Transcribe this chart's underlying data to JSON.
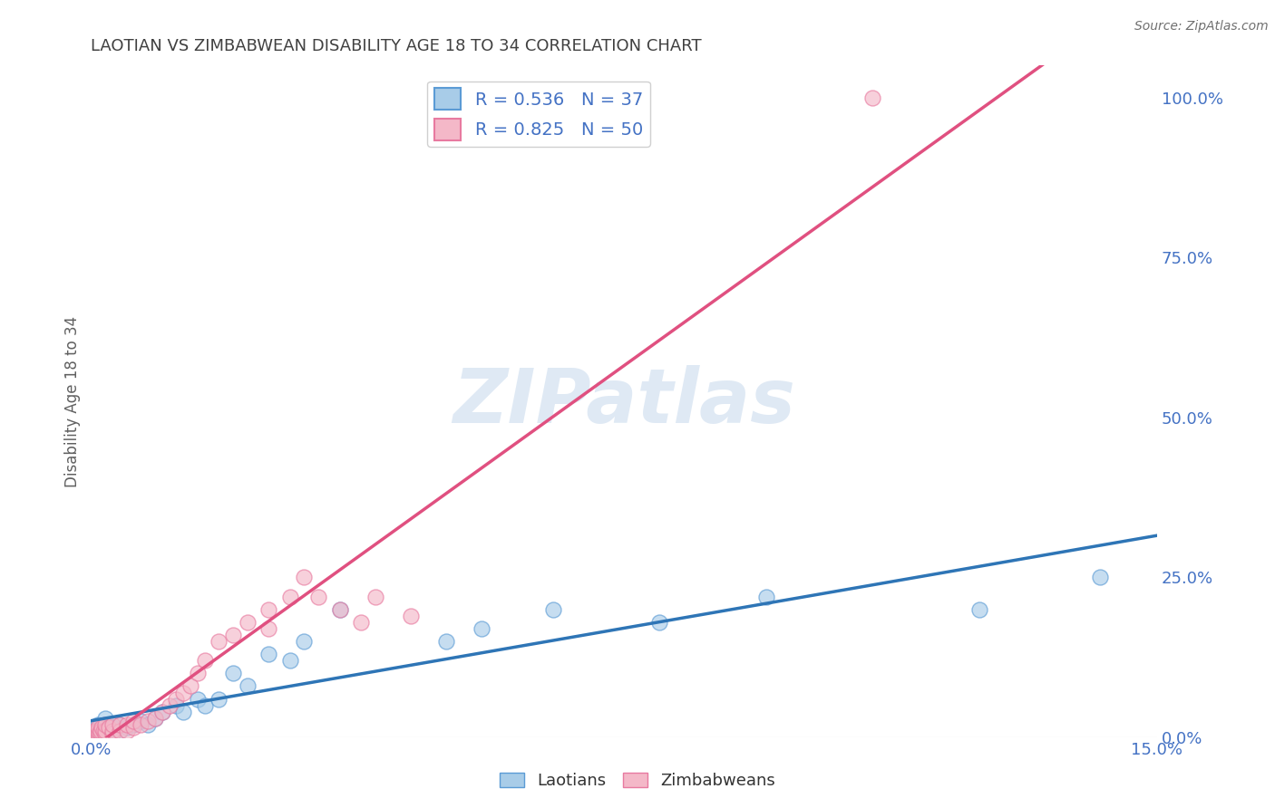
{
  "title": "LAOTIAN VS ZIMBABWEAN DISABILITY AGE 18 TO 34 CORRELATION CHART",
  "source": "Source: ZipAtlas.com",
  "ylabel": "Disability Age 18 to 34",
  "xlim": [
    0.0,
    0.15
  ],
  "ylim": [
    0.0,
    1.05
  ],
  "xticks": [
    0.0,
    0.025,
    0.05,
    0.075,
    0.1,
    0.125,
    0.15
  ],
  "xticklabels": [
    "0.0%",
    "",
    "",
    "",
    "",
    "",
    "15.0%"
  ],
  "yticks_right": [
    0.0,
    0.25,
    0.5,
    0.75,
    1.0
  ],
  "yticklabels_right": [
    "0.0%",
    "25.0%",
    "50.0%",
    "75.0%",
    "100.0%"
  ],
  "laotian_color": "#a8cce8",
  "zimbabwean_color": "#f4b8c8",
  "laotian_edge_color": "#5b9bd5",
  "zimbabwean_edge_color": "#e87aa0",
  "laotian_line_color": "#2e75b6",
  "zimbabwean_line_color": "#e05080",
  "laotian_R": 0.536,
  "laotian_N": 37,
  "zimbabwean_R": 0.825,
  "zimbabwean_N": 50,
  "watermark": "ZIPatlas",
  "background_color": "#ffffff",
  "legend_label_color": "#4472c4",
  "tick_color": "#4472c4",
  "title_color": "#404040",
  "ylabel_color": "#606060",
  "laotian_x": [
    0.0005,
    0.001,
    0.001,
    0.001,
    0.001,
    0.0015,
    0.002,
    0.002,
    0.002,
    0.003,
    0.003,
    0.004,
    0.004,
    0.005,
    0.006,
    0.007,
    0.008,
    0.009,
    0.01,
    0.012,
    0.013,
    0.015,
    0.016,
    0.018,
    0.02,
    0.022,
    0.025,
    0.028,
    0.03,
    0.035,
    0.05,
    0.055,
    0.065,
    0.08,
    0.095,
    0.125,
    0.142
  ],
  "laotian_y": [
    0.005,
    0.005,
    0.01,
    0.015,
    0.02,
    0.005,
    0.01,
    0.02,
    0.03,
    0.005,
    0.015,
    0.01,
    0.02,
    0.015,
    0.02,
    0.025,
    0.02,
    0.03,
    0.04,
    0.05,
    0.04,
    0.06,
    0.05,
    0.06,
    0.1,
    0.08,
    0.13,
    0.12,
    0.15,
    0.2,
    0.15,
    0.17,
    0.2,
    0.18,
    0.22,
    0.2,
    0.25
  ],
  "zimbabwean_x": [
    0.0002,
    0.0003,
    0.0004,
    0.0005,
    0.0006,
    0.0007,
    0.0008,
    0.001,
    0.001,
    0.001,
    0.0012,
    0.0013,
    0.0015,
    0.0017,
    0.002,
    0.002,
    0.002,
    0.0025,
    0.003,
    0.003,
    0.003,
    0.004,
    0.004,
    0.005,
    0.005,
    0.006,
    0.006,
    0.007,
    0.008,
    0.009,
    0.01,
    0.011,
    0.012,
    0.013,
    0.014,
    0.015,
    0.016,
    0.018,
    0.02,
    0.022,
    0.025,
    0.025,
    0.028,
    0.03,
    0.032,
    0.035,
    0.038,
    0.04,
    0.045,
    0.11
  ],
  "zimbabwean_y": [
    0.005,
    0.005,
    0.005,
    0.01,
    0.005,
    0.005,
    0.01,
    0.005,
    0.01,
    0.015,
    0.008,
    0.01,
    0.015,
    0.01,
    0.005,
    0.01,
    0.02,
    0.015,
    0.005,
    0.01,
    0.02,
    0.01,
    0.02,
    0.01,
    0.02,
    0.015,
    0.025,
    0.02,
    0.025,
    0.03,
    0.04,
    0.05,
    0.06,
    0.07,
    0.08,
    0.1,
    0.12,
    0.15,
    0.16,
    0.18,
    0.2,
    0.17,
    0.22,
    0.25,
    0.22,
    0.2,
    0.18,
    0.22,
    0.19,
    1.0
  ],
  "grid_color": "#d0d0d0",
  "axis_line_color": "#cccccc"
}
